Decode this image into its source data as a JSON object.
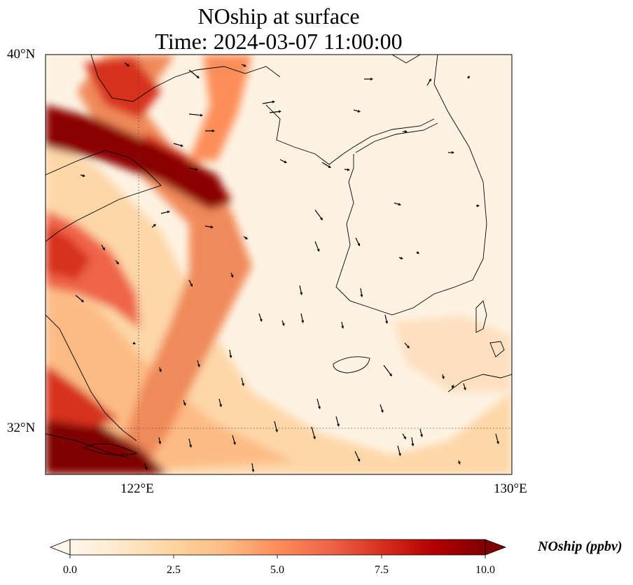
{
  "title": {
    "line1": "NOship at surface",
    "line2": "Time: 2024-03-07 11:00:00"
  },
  "map": {
    "lat_labels": [
      "40°N",
      "32°N"
    ],
    "lon_labels": [
      "122°E",
      "130°E"
    ],
    "extent": {
      "lon_min": 120,
      "lon_max": 130,
      "lat_min": 31,
      "lat_max": 40
    },
    "gridlines": {
      "lon": [
        122
      ],
      "lat": [
        32
      ],
      "style": "dotted"
    }
  },
  "colorbar": {
    "label": "NOship (ppbv)",
    "ticks": [
      "0.0",
      "2.5",
      "5.0",
      "7.5",
      "10.0"
    ],
    "min": 0,
    "max": 10,
    "colormap": "OrRd",
    "extend": "both"
  },
  "colors": {
    "low": "#fff7ec",
    "mid": "#fdbb84",
    "high": "#7f0000",
    "coast": "#000000"
  }
}
